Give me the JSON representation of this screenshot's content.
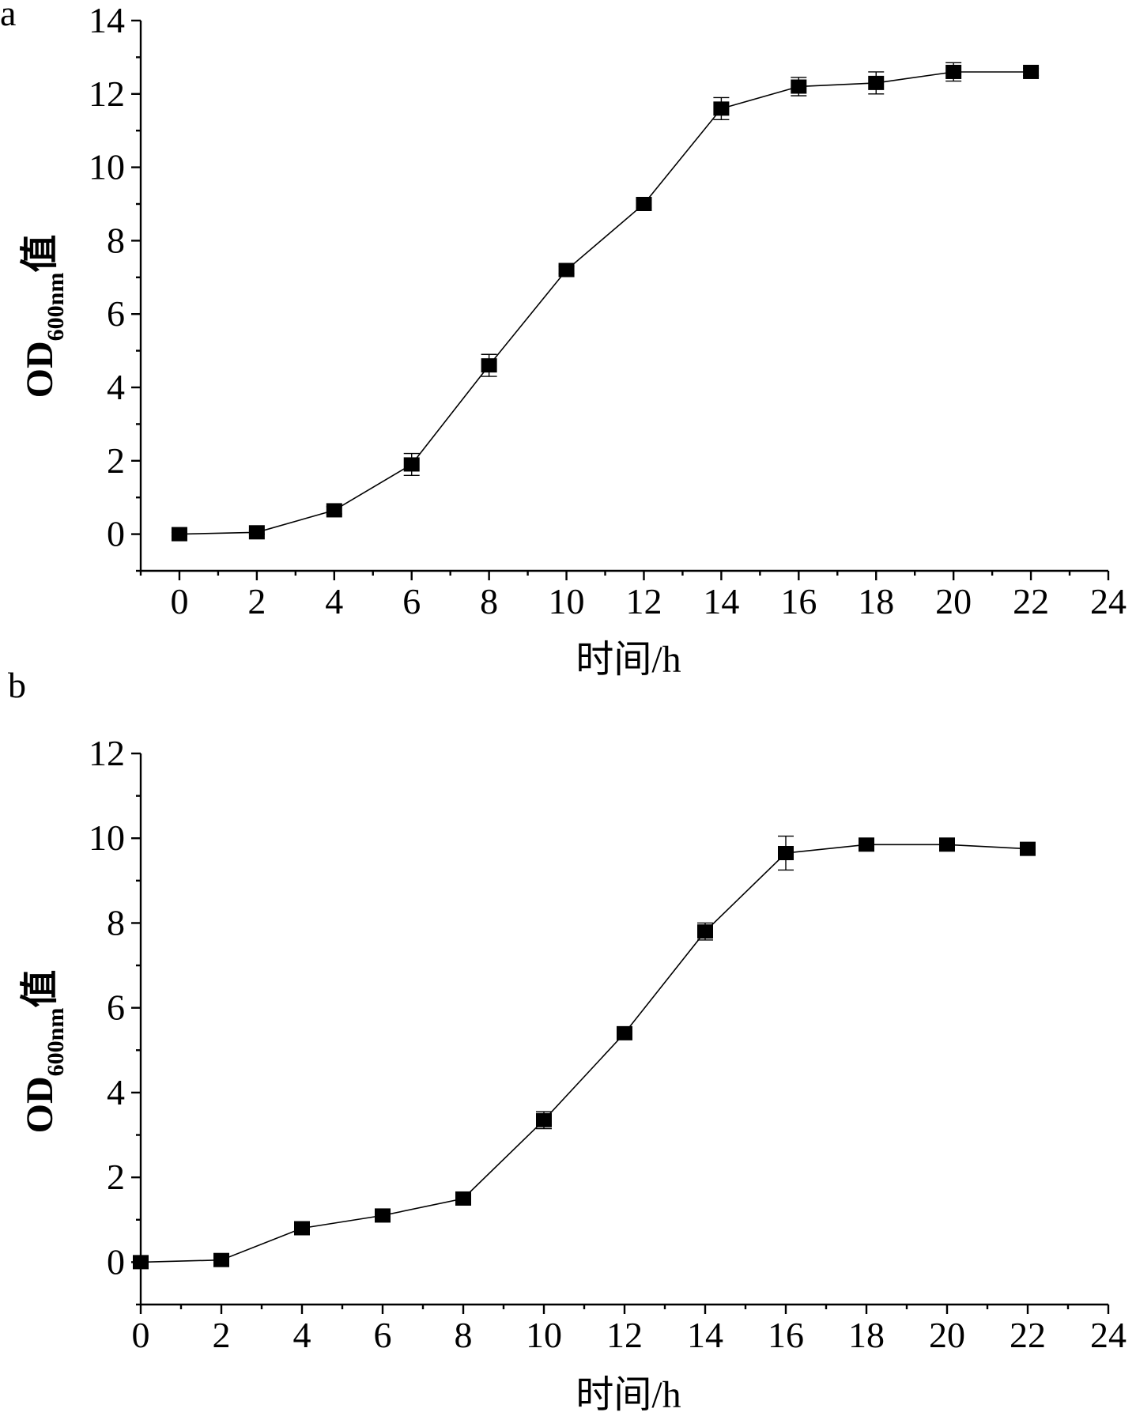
{
  "chart_data": [
    {
      "type": "line",
      "panel_label": "a",
      "xlabel": "时间/h",
      "ylabel_main": "OD",
      "ylabel_sub": "600nm",
      "ylabel_suffix": "值",
      "xlim": [
        -1,
        24
      ],
      "ylim": [
        -1,
        14
      ],
      "xticks": [
        "0",
        "2",
        "4",
        "6",
        "8",
        "10",
        "12",
        "14",
        "16",
        "18",
        "20",
        "22",
        "24"
      ],
      "yticks": [
        "0",
        "2",
        "4",
        "6",
        "8",
        "10",
        "12",
        "14"
      ],
      "x": [
        0,
        2,
        4,
        6,
        8,
        10,
        12,
        14,
        16,
        18,
        20,
        22
      ],
      "series": [
        {
          "values": [
            0.0,
            0.05,
            0.65,
            1.9,
            4.6,
            7.2,
            9.0,
            11.6,
            12.2,
            12.3,
            12.6,
            12.6
          ],
          "errors": [
            0.05,
            0.05,
            0.1,
            0.3,
            0.3,
            0.1,
            0.1,
            0.3,
            0.25,
            0.3,
            0.25,
            0.1
          ]
        }
      ],
      "marker": "square",
      "grid": false
    },
    {
      "type": "line",
      "panel_label": "b",
      "xlabel": "时间/h",
      "ylabel_main": "OD",
      "ylabel_sub": "600nm",
      "ylabel_suffix": "值",
      "xlim": [
        0,
        24
      ],
      "ylim": [
        -1,
        12
      ],
      "xticks": [
        "0",
        "2",
        "4",
        "6",
        "8",
        "10",
        "12",
        "14",
        "16",
        "18",
        "20",
        "22",
        "24"
      ],
      "yticks": [
        "0",
        "2",
        "4",
        "6",
        "8",
        "10",
        "12"
      ],
      "x": [
        0,
        2,
        4,
        6,
        8,
        10,
        12,
        14,
        16,
        18,
        20,
        22
      ],
      "series": [
        {
          "values": [
            0.0,
            0.05,
            0.8,
            1.1,
            1.5,
            3.35,
            5.4,
            7.8,
            9.65,
            9.85,
            9.85,
            9.75
          ],
          "errors": [
            0.05,
            0.05,
            0.08,
            0.1,
            0.1,
            0.2,
            0.1,
            0.2,
            0.4,
            0.1,
            0.1,
            0.1
          ]
        }
      ],
      "marker": "square",
      "grid": false
    }
  ]
}
